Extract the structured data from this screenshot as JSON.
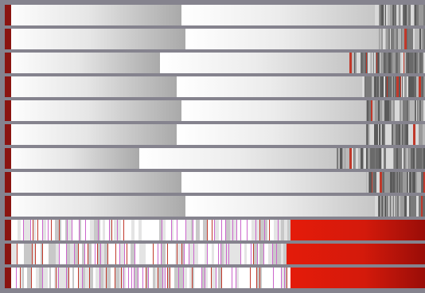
{
  "colors": {
    "background": "#85838e",
    "edge": "#8a1410",
    "red_light": "#e41b0a",
    "red_dark": "#9a0d08",
    "stripe_gray": [
      "#5a5a5a",
      "#7a7a7a",
      "#b8b8b8",
      "#d9d9d9",
      "#6a6a6a",
      "#9a9a9a"
    ],
    "stripe_accent": [
      "#c0392b",
      "#cc66cc",
      "#e8e8e8"
    ]
  },
  "gray_rows": [
    {
      "split": 0.42,
      "stripe_start": 0.88
    },
    {
      "split": 0.43,
      "stripe_start": 0.89
    },
    {
      "split": 0.37,
      "stripe_start": 0.82
    },
    {
      "split": 0.41,
      "stripe_start": 0.85
    },
    {
      "split": 0.42,
      "stripe_start": 0.86
    },
    {
      "split": 0.41,
      "stripe_start": 0.86
    },
    {
      "split": 0.32,
      "stripe_start": 0.79
    },
    {
      "split": 0.42,
      "stripe_start": 0.86
    },
    {
      "split": 0.43,
      "stripe_start": 0.88
    }
  ],
  "red_rows": [
    {
      "stripe_end": 0.68
    },
    {
      "stripe_end": 0.67
    },
    {
      "stripe_end": 0.68
    }
  ]
}
